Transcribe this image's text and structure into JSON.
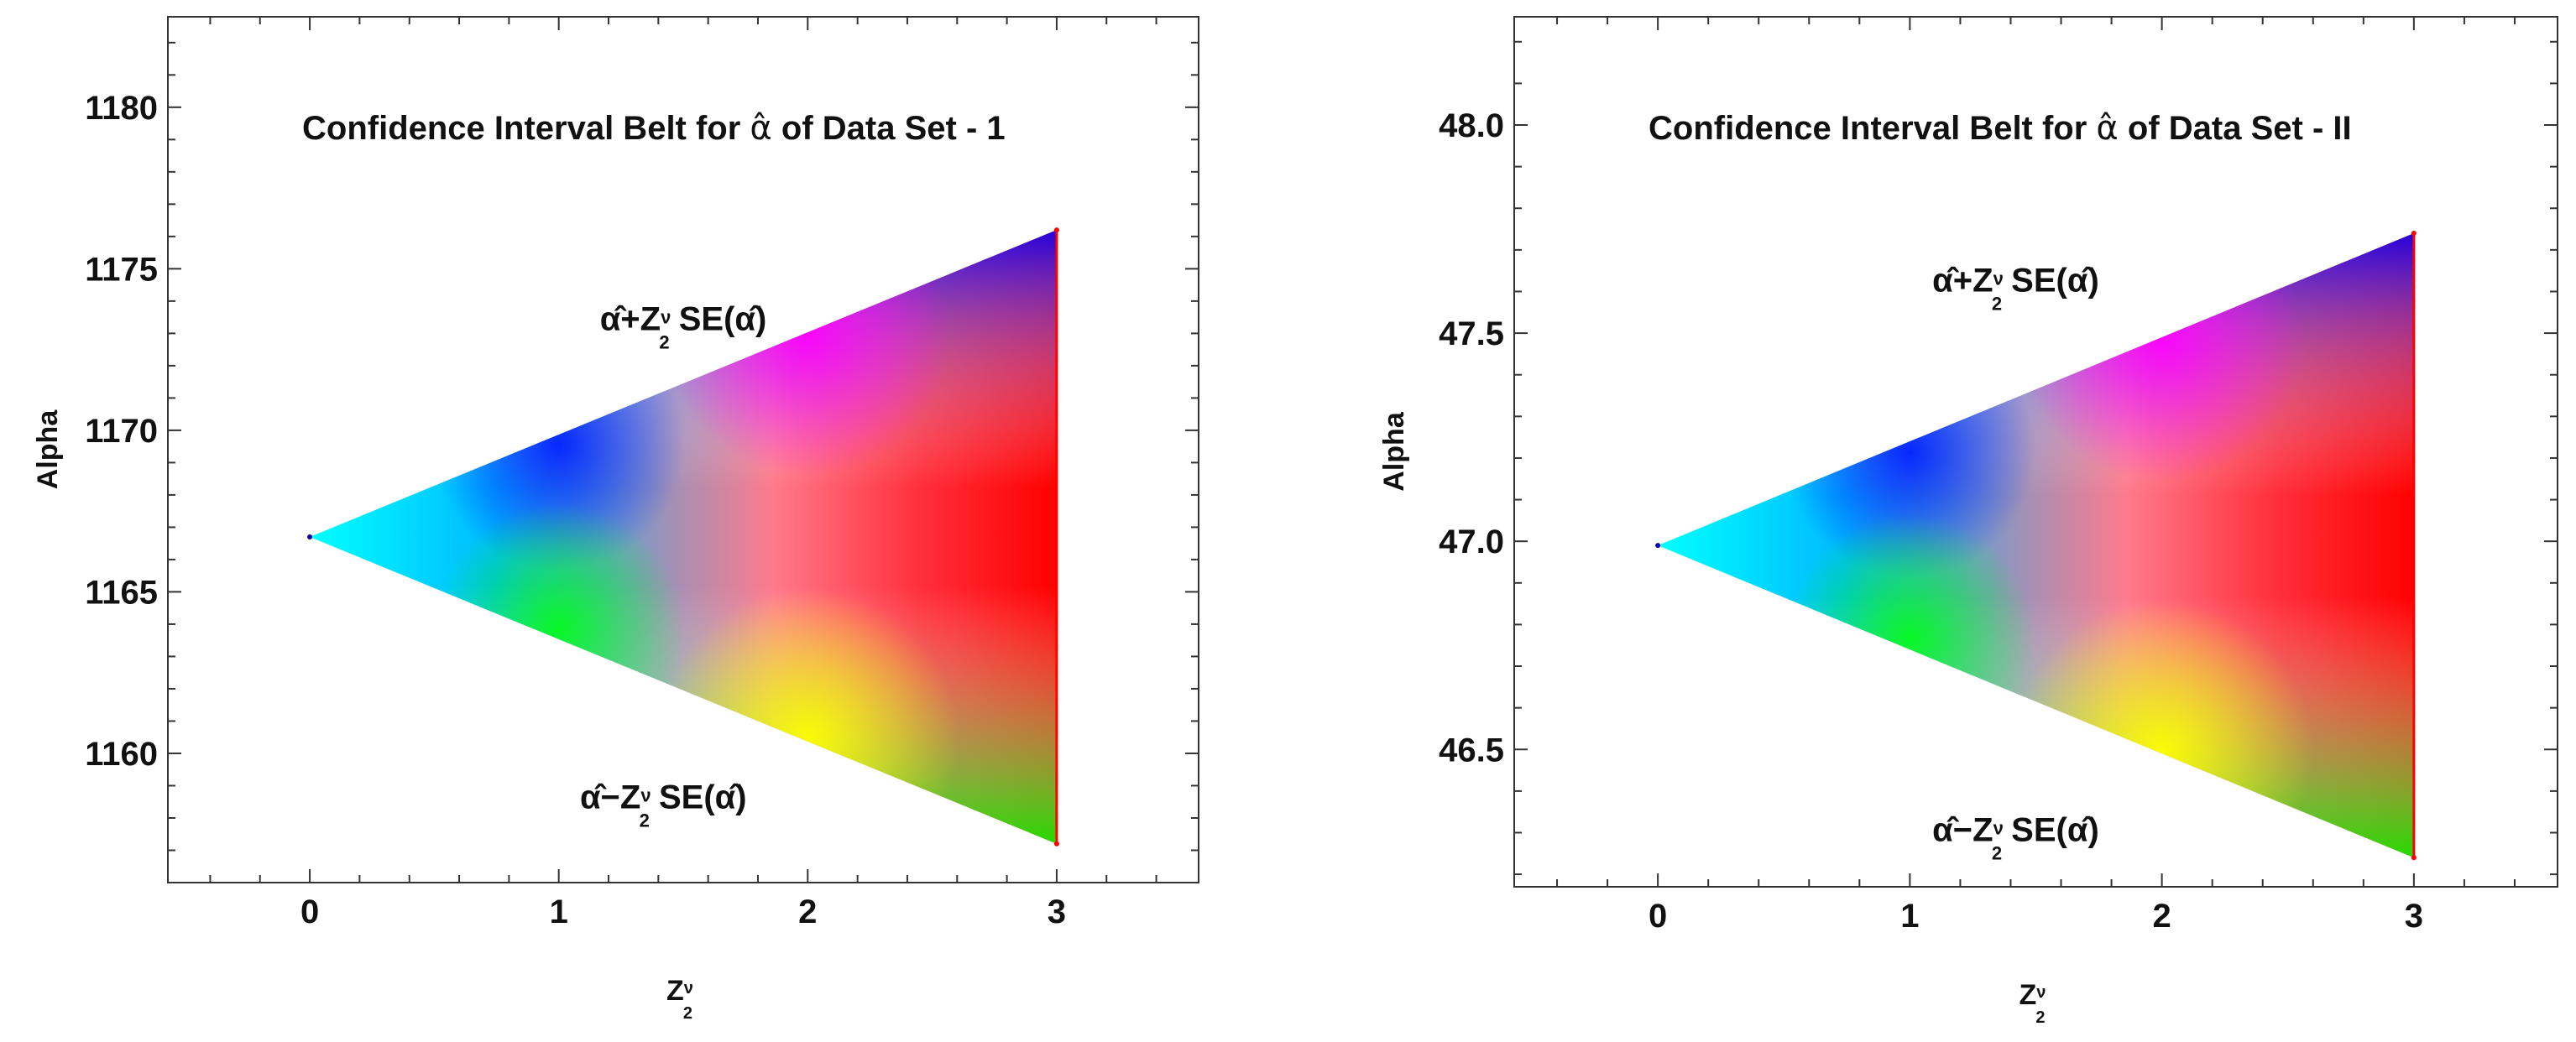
{
  "chart_data": [
    {
      "type": "area",
      "title": "Confidence Interval Belt for α̂ of Data Set - 1",
      "title_parts": {
        "before": "Confidence Interval Belt for ",
        "symbol": "α̂",
        "after": " of Data Set - 1"
      },
      "xlabel": {
        "main": "Z",
        "sub": "2",
        "sup": "ν"
      },
      "ylabel": "Alpha",
      "xlim": [
        -0.57,
        3.57
      ],
      "ylim": [
        1156.0,
        1182.8
      ],
      "xticks": [
        0,
        1,
        2,
        3
      ],
      "yticks": [
        1160,
        1165,
        1170,
        1175,
        1180
      ],
      "grid": false,
      "series": [
        {
          "name": "α̂+Z SE(α̂)",
          "x": [
            0,
            3
          ],
          "y": [
            1166.7,
            1176.2
          ]
        },
        {
          "name": "α̂−Z SE(α̂)",
          "x": [
            0,
            3
          ],
          "y": [
            1166.7,
            1157.2
          ]
        }
      ],
      "annotations": [
        {
          "text": "α̂+Z",
          "sub": "2",
          "sup": "ν",
          "tail": " SE(α̂)",
          "at": [
            1.5,
            1173.1
          ]
        },
        {
          "text": "α̂−Z",
          "sub": "2",
          "sup": "ν",
          "tail": " SE(α̂)",
          "at": [
            1.42,
            1158.3
          ]
        }
      ],
      "gradient_colors": {
        "apex": "#00ffff",
        "upper_mid": "#0000ff",
        "upper_right": "#ff00ff",
        "lower_mid": "#00ff00",
        "lower_right": "#ffff00",
        "right": "#ff0000"
      }
    },
    {
      "type": "area",
      "title": "Confidence Interval Belt for α̂ of Data Set - II",
      "title_parts": {
        "before": "Confidence Interval Belt for ",
        "symbol": "α̂",
        "after": " of Data Set - II"
      },
      "xlabel": {
        "main": "Z",
        "sub": "2",
        "sup": "ν"
      },
      "ylabel": "Alpha",
      "xlim": [
        -0.57,
        3.57
      ],
      "ylim": [
        46.17,
        48.26
      ],
      "xticks": [
        0,
        1,
        2,
        3
      ],
      "yticks": [
        46.5,
        47.0,
        47.5,
        48.0
      ],
      "ytick_format": 1,
      "grid": false,
      "series": [
        {
          "name": "α̂+Z SE(α̂)",
          "x": [
            0,
            3
          ],
          "y": [
            46.99,
            47.74
          ]
        },
        {
          "name": "α̂−Z SE(α̂)",
          "x": [
            0,
            3
          ],
          "y": [
            46.99,
            46.24
          ]
        }
      ],
      "annotations": [
        {
          "text": "α̂+Z",
          "sub": "2",
          "sup": "ν",
          "tail": " SE(α̂)",
          "at": [
            1.42,
            47.6
          ]
        },
        {
          "text": "α̂−Z",
          "sub": "2",
          "sup": "ν",
          "tail": " SE(α̂)",
          "at": [
            1.42,
            46.28
          ]
        }
      ],
      "gradient_colors": {
        "apex": "#00ffff",
        "upper_mid": "#0000ff",
        "upper_right": "#ff00ff",
        "lower_mid": "#00ff00",
        "lower_right": "#ffff00",
        "right": "#ff0000"
      }
    }
  ]
}
